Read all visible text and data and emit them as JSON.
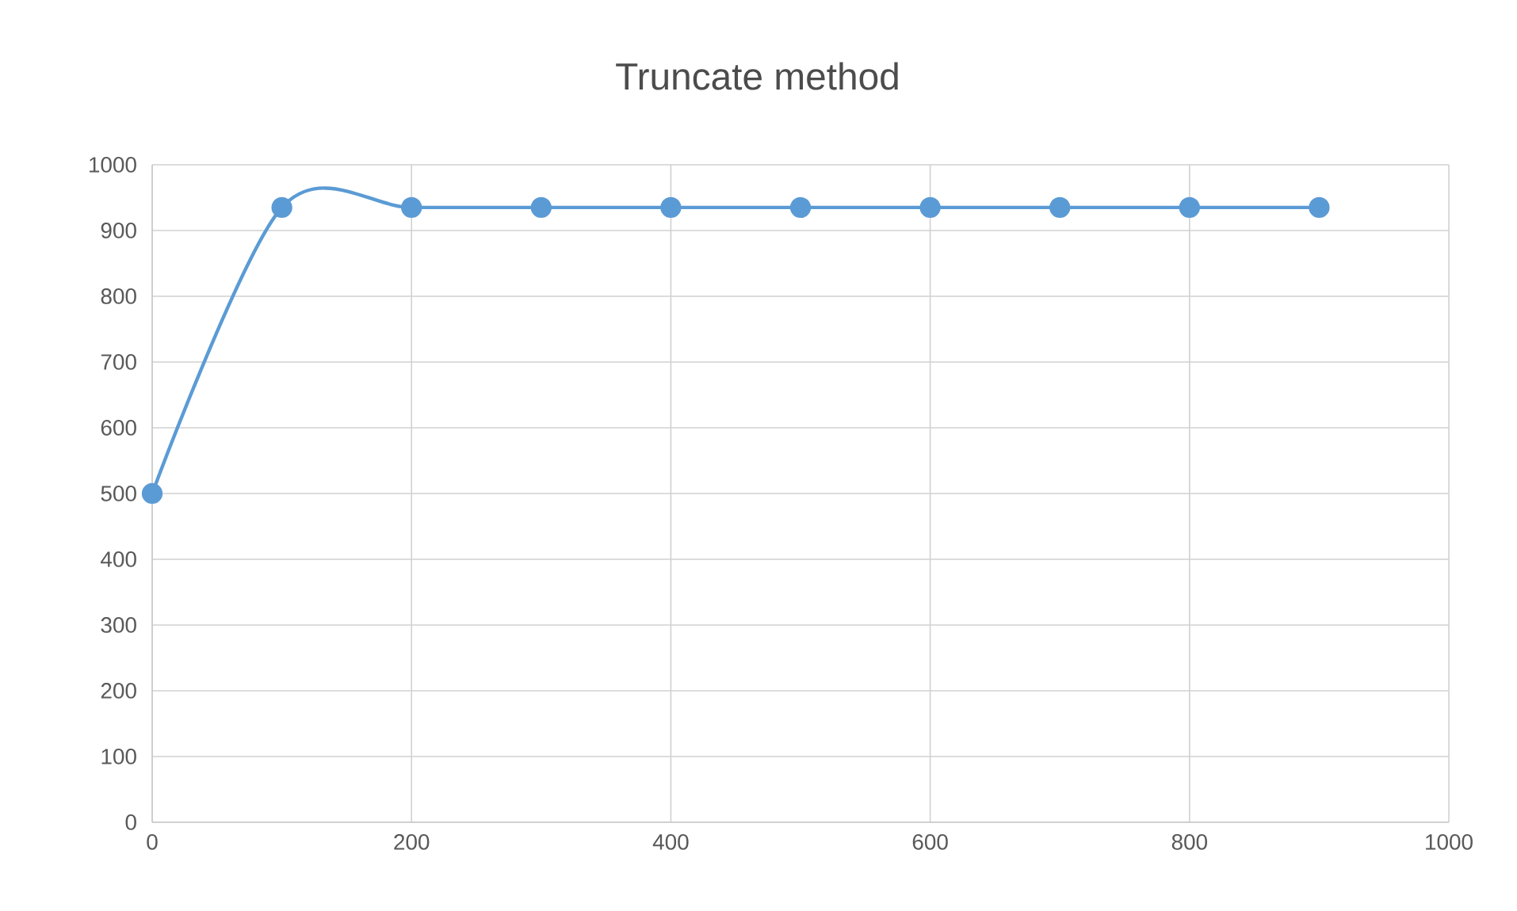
{
  "chart_data": {
    "type": "line",
    "title": "Truncate method",
    "x": [
      0,
      100,
      200,
      300,
      400,
      500,
      600,
      700,
      800,
      900
    ],
    "series": [
      {
        "color": "#5b9bd5",
        "values": [
          500,
          935,
          935,
          935,
          935,
          935,
          935,
          935,
          935,
          935
        ]
      }
    ],
    "xlim": [
      0,
      1000
    ],
    "xticks": [
      0,
      200,
      400,
      600,
      800,
      1000
    ],
    "ylim": [
      0,
      1000
    ],
    "yticks": [
      0,
      100,
      200,
      300,
      400,
      500,
      600,
      700,
      800,
      900,
      1000
    ],
    "grid": true,
    "marker": "circle",
    "line_style": "solid"
  }
}
